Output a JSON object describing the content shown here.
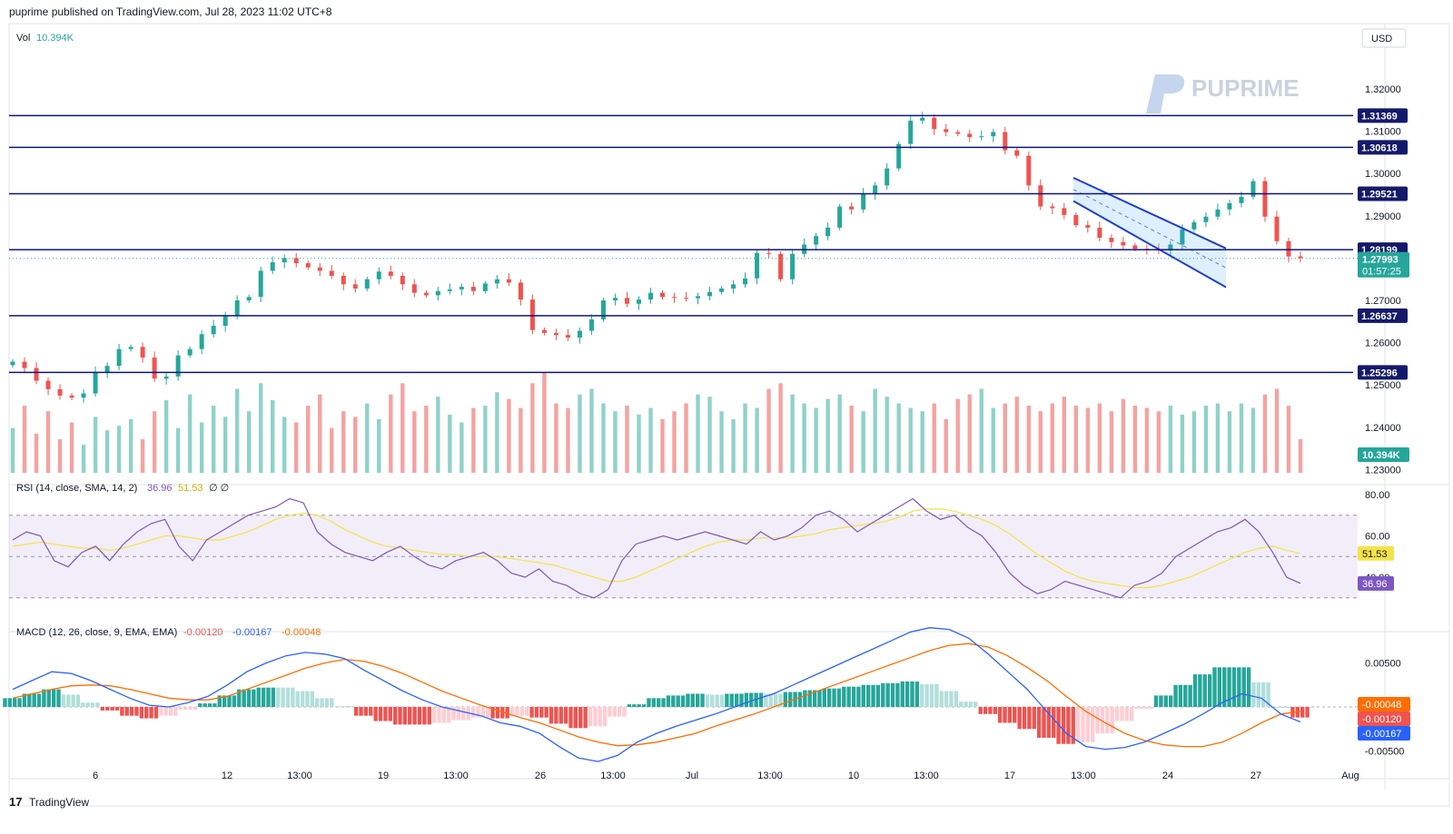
{
  "header": {
    "publish_line": "puprime published on TradingView.com, Jul 28, 2023 11:02 UTC+8"
  },
  "footer": {
    "brand": "TradingView"
  },
  "watermark": {
    "text": "PUPRIME"
  },
  "currency": "USD",
  "volume_legend": {
    "label": "Vol",
    "value": "10.394K",
    "color": "#26a69a"
  },
  "colors": {
    "up": "#26a69a",
    "down": "#ef5350",
    "level_line": "#0d1780",
    "rsi_line": "#7e57c2",
    "rsi_sma": "#f5e24a",
    "macd_line": "#2962ff",
    "signal_line": "#ff6d00"
  },
  "levels": [
    "1.31369",
    "1.30618",
    "1.29521",
    "1.28199",
    "1.26637",
    "1.25296"
  ],
  "current_price": {
    "price": "1.27993",
    "countdown": "01:57:25",
    "volume_tag": "10.394K"
  },
  "rsi_panel": {
    "title": "RSI (14, close, SMA, 14, 2)",
    "value": "36.96",
    "sma_value": "51.53",
    "extra": "∅ ∅",
    "ticks": [
      "80.00",
      "60.00",
      "40.00"
    ]
  },
  "macd_panel": {
    "title": "MACD (12, 26, close, 9, EMA, EMA)",
    "hist_value": "-0.00120",
    "macd_value": "-0.00167",
    "signal_value": "-0.00048",
    "tags": [
      "-0.00048",
      "-0.00120",
      "-0.00167"
    ],
    "ticks": [
      "0.00500",
      "-0.00500"
    ]
  },
  "chart_data": {
    "type": "candlestick",
    "symbol_quote": "USD",
    "price_ticks": [
      "1.32000",
      "1.31000",
      "1.30000",
      "1.29000",
      "1.28000",
      "1.27000",
      "1.26000",
      "1.25000",
      "1.24000",
      "1.23000"
    ],
    "x_tick_labels": [
      "6",
      "12",
      "13:00",
      "19",
      "13:00",
      "26",
      "13:00",
      "Jul",
      "13:00",
      "10",
      "13:00",
      "17",
      "13:00",
      "24",
      "27",
      "Aug"
    ],
    "horizontal_levels": [
      1.31369,
      1.30618,
      1.29521,
      1.28199,
      1.26637,
      1.25296
    ],
    "descending_channel": {
      "upper": [
        1.299,
        1.2823
      ],
      "lower": [
        1.2935,
        1.2731
      ]
    },
    "rsi_bands": [
      30,
      50,
      70
    ],
    "close_series": [
      1.2555,
      1.254,
      1.251,
      1.249,
      1.2475,
      1.247,
      1.248,
      1.253,
      1.2545,
      1.2585,
      1.259,
      1.2565,
      1.2515,
      1.252,
      1.257,
      1.2585,
      1.262,
      1.264,
      1.2665,
      1.27,
      1.2708,
      1.277,
      1.279,
      1.28,
      1.2788,
      1.2778,
      1.277,
      1.2758,
      1.2738,
      1.2728,
      1.275,
      1.2768,
      1.2758,
      1.2738,
      1.2718,
      1.2712,
      1.2722,
      1.2726,
      1.2732,
      1.2722,
      1.274,
      1.275,
      1.2742,
      1.2702,
      1.263,
      1.2623,
      1.2618,
      1.2612,
      1.2628,
      1.2655,
      1.27,
      1.2706,
      1.2692,
      1.2702,
      1.2718,
      1.2708,
      1.2706,
      1.2705,
      1.271,
      1.272,
      1.2728,
      1.2738,
      1.2752,
      1.2812,
      1.281,
      1.275,
      1.281,
      1.2832,
      1.2852,
      1.2872,
      1.2922,
      1.2915,
      1.2952,
      1.2972,
      1.3012,
      1.307,
      1.3125,
      1.3132,
      1.3105,
      1.3098,
      1.3094,
      1.3086,
      1.3088,
      1.3098,
      1.3055,
      1.3042,
      1.2972,
      1.2922,
      1.2918,
      1.2902,
      1.2878,
      1.2872,
      1.2848,
      1.2838,
      1.283,
      1.2822,
      1.282,
      1.2818,
      1.2832,
      1.2868,
      1.2885,
      1.2898,
      1.2915,
      1.293,
      1.2945,
      1.2982,
      1.2898,
      1.284,
      1.2804,
      1.28
    ],
    "volume_series": [
      40,
      60,
      35,
      55,
      30,
      45,
      25,
      50,
      38,
      42,
      48,
      30,
      55,
      65,
      40,
      70,
      45,
      60,
      50,
      75,
      55,
      80,
      65,
      50,
      45,
      60,
      70,
      40,
      55,
      50,
      62,
      48,
      70,
      80,
      55,
      60,
      68,
      52,
      45,
      58,
      60,
      72,
      66,
      58,
      80,
      90,
      62,
      58,
      70,
      75,
      62,
      55,
      60,
      52,
      58,
      48,
      55,
      62,
      70,
      68,
      55,
      48,
      62,
      58,
      75,
      80,
      70,
      62,
      58,
      66,
      70,
      60,
      55,
      75,
      68,
      62,
      58,
      55,
      62,
      48,
      66,
      70,
      75,
      58,
      62,
      68,
      60,
      55,
      62,
      68,
      60,
      58,
      62,
      55,
      66,
      60,
      58,
      55,
      60,
      52,
      55,
      60,
      62,
      55,
      62,
      58,
      70,
      75,
      60,
      30
    ],
    "rsi_series": [
      58,
      62,
      60,
      48,
      45,
      52,
      55,
      48,
      56,
      62,
      66,
      68,
      55,
      48,
      58,
      62,
      66,
      70,
      72,
      74,
      78,
      76,
      62,
      56,
      52,
      50,
      48,
      52,
      55,
      50,
      46,
      44,
      48,
      50,
      52,
      48,
      42,
      40,
      44,
      38,
      36,
      32,
      30,
      34,
      48,
      56,
      58,
      60,
      58,
      60,
      62,
      60,
      58,
      56,
      62,
      58,
      60,
      64,
      70,
      72,
      68,
      62,
      66,
      70,
      74,
      78,
      72,
      68,
      70,
      64,
      60,
      52,
      42,
      36,
      32,
      34,
      38,
      36,
      34,
      32,
      30,
      36,
      38,
      42,
      50,
      54,
      58,
      62,
      64,
      68,
      62,
      52,
      40,
      37
    ],
    "rsi_sma_series": [
      55,
      56,
      57,
      56,
      55,
      54,
      54,
      53,
      54,
      56,
      58,
      60,
      60,
      59,
      58,
      58,
      60,
      62,
      65,
      68,
      70,
      71,
      70,
      67,
      63,
      60,
      57,
      55,
      54,
      53,
      52,
      51,
      51,
      50,
      50,
      50,
      49,
      48,
      47,
      46,
      44,
      42,
      40,
      38,
      38,
      40,
      43,
      46,
      49,
      52,
      55,
      57,
      58,
      58,
      59,
      59,
      59,
      60,
      61,
      63,
      64,
      65,
      66,
      67,
      69,
      72,
      73,
      73,
      72,
      70,
      68,
      65,
      61,
      56,
      51,
      47,
      43,
      40,
      38,
      37,
      36,
      35,
      35,
      36,
      38,
      40,
      43,
      46,
      49,
      52,
      54,
      55,
      53,
      51.5
    ],
    "macd_series": [
      0.002,
      0.003,
      0.004,
      0.0038,
      0.003,
      0.002,
      0.001,
      0.0002,
      0.0,
      0.0005,
      0.0012,
      0.0025,
      0.004,
      0.005,
      0.0058,
      0.0062,
      0.006,
      0.0055,
      0.0042,
      0.003,
      0.0018,
      0.0008,
      0.0,
      -0.0005,
      -0.001,
      -0.0018,
      -0.0022,
      -0.003,
      -0.0045,
      -0.0058,
      -0.0062,
      -0.0055,
      -0.004,
      -0.003,
      -0.0022,
      -0.0015,
      -0.0008,
      0.0,
      0.0008,
      0.0015,
      0.0025,
      0.0035,
      0.0045,
      0.0055,
      0.0065,
      0.0075,
      0.0085,
      0.009,
      0.0088,
      0.0078,
      0.006,
      0.004,
      0.002,
      -0.0005,
      -0.003,
      -0.0045,
      -0.0048,
      -0.0046,
      -0.004,
      -0.003,
      -0.002,
      -0.0008,
      0.0005,
      0.0015,
      0.001,
      -0.0008,
      -0.0017
    ],
    "signal_series": [
      0.001,
      0.0015,
      0.002,
      0.0024,
      0.0025,
      0.0024,
      0.002,
      0.0015,
      0.001,
      0.0008,
      0.0008,
      0.0012,
      0.002,
      0.0028,
      0.0036,
      0.0044,
      0.005,
      0.0054,
      0.0052,
      0.0046,
      0.0038,
      0.0028,
      0.0018,
      0.001,
      0.0002,
      -0.0005,
      -0.0012,
      -0.0018,
      -0.0026,
      -0.0034,
      -0.004,
      -0.0044,
      -0.0043,
      -0.004,
      -0.0035,
      -0.003,
      -0.0022,
      -0.0015,
      -0.0008,
      0.0,
      0.0008,
      0.0016,
      0.0024,
      0.0032,
      0.004,
      0.0048,
      0.0056,
      0.0064,
      0.007,
      0.0072,
      0.0068,
      0.0058,
      0.0045,
      0.003,
      0.0012,
      -0.0005,
      -0.0018,
      -0.003,
      -0.0038,
      -0.0043,
      -0.0045,
      -0.0045,
      -0.004,
      -0.003,
      -0.0018,
      -0.0008,
      -0.0005
    ]
  }
}
